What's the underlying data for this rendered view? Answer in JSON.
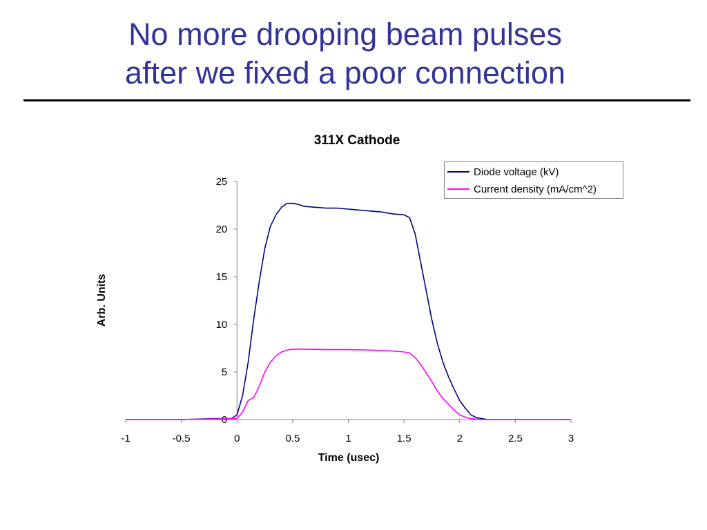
{
  "slide": {
    "title_line1": "No more drooping beam pulses",
    "title_line2": "after we fixed a poor connection",
    "title_color": "#333399"
  },
  "chart_data": {
    "type": "line",
    "title": "311X Cathode",
    "xlabel": "Time (usec)",
    "ylabel": "Arb. Units",
    "xlim": [
      -1,
      3
    ],
    "ylim": [
      0,
      25
    ],
    "xticks": [
      "-1",
      "-0.5",
      "0",
      "0.5",
      "1",
      "1.5",
      "2",
      "2.5",
      "3"
    ],
    "yticks": [
      "0",
      "5",
      "10",
      "15",
      "20",
      "25"
    ],
    "grid": false,
    "legend_position": "top-right",
    "series": [
      {
        "name": "Diode voltage (kV)",
        "color": "#000080",
        "x": [
          -1,
          -0.5,
          -0.2,
          -0.1,
          -0.05,
          0,
          0.05,
          0.1,
          0.15,
          0.2,
          0.25,
          0.3,
          0.35,
          0.4,
          0.45,
          0.5,
          0.55,
          0.6,
          0.7,
          0.8,
          0.9,
          1.0,
          1.1,
          1.2,
          1.3,
          1.4,
          1.5,
          1.55,
          1.6,
          1.65,
          1.7,
          1.75,
          1.8,
          1.85,
          1.9,
          1.95,
          2.0,
          2.05,
          2.1,
          2.15,
          2.2,
          2.25,
          2.5,
          3.0
        ],
        "y": [
          0,
          0,
          0.1,
          0.1,
          0.1,
          0.5,
          2.5,
          6,
          10.5,
          14.5,
          18,
          20.3,
          21.5,
          22.3,
          22.7,
          22.7,
          22.6,
          22.4,
          22.3,
          22.2,
          22.2,
          22.1,
          22.0,
          21.9,
          21.8,
          21.6,
          21.5,
          21.2,
          19.5,
          16.5,
          13.5,
          10.5,
          8.0,
          6.0,
          4.5,
          3.2,
          2.0,
          1.2,
          0.5,
          0.2,
          0.1,
          0,
          0,
          0
        ]
      },
      {
        "name": "Current density (mA/cm^2)",
        "color": "#ff00ff",
        "x": [
          -1,
          -0.5,
          0,
          0.05,
          0.1,
          0.15,
          0.2,
          0.25,
          0.3,
          0.35,
          0.4,
          0.45,
          0.5,
          0.6,
          0.8,
          1.0,
          1.2,
          1.4,
          1.5,
          1.55,
          1.6,
          1.65,
          1.7,
          1.75,
          1.8,
          1.85,
          1.9,
          1.95,
          2.0,
          2.05,
          2.1,
          2.2,
          2.5,
          3.0
        ],
        "y": [
          0,
          0,
          0.1,
          0.8,
          2.0,
          2.3,
          3.5,
          5.0,
          6.0,
          6.7,
          7.1,
          7.3,
          7.4,
          7.4,
          7.35,
          7.35,
          7.3,
          7.2,
          7.1,
          7.0,
          6.5,
          5.8,
          4.9,
          4.0,
          3.0,
          2.2,
          1.6,
          1.0,
          0.5,
          0.25,
          0.1,
          0,
          0,
          0
        ]
      }
    ]
  }
}
